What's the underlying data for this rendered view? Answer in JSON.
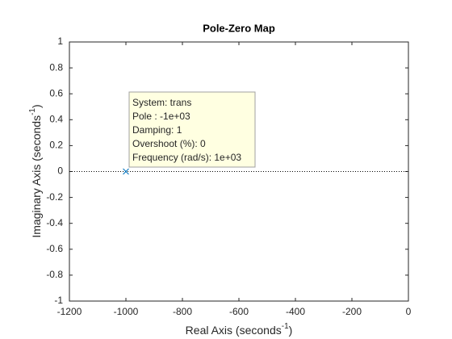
{
  "chart_data": {
    "type": "scatter",
    "title": "Pole-Zero Map",
    "xlabel": [
      "Real Axis (seconds",
      "-1",
      ")"
    ],
    "ylabel": [
      "Imaginary Axis (seconds",
      "-1",
      ")"
    ],
    "series": [
      {
        "x": [
          -1000
        ],
        "values": [
          0
        ],
        "color": "#0072bd"
      }
    ],
    "xlim": [
      -1200,
      0
    ],
    "xticks": [
      -1200,
      -1000,
      -800,
      -600,
      -400,
      -200,
      0
    ],
    "ylim": [
      -1,
      1
    ],
    "yticks": [
      -1,
      -0.8,
      -0.6,
      -0.4,
      -0.2,
      0,
      0.2,
      0.4,
      0.6,
      0.8,
      1
    ],
    "grid": false,
    "datatip": [
      "System: trans",
      "Pole : -1e+03",
      "Damping: 1",
      "Overshoot (%): 0",
      "Frequency (rad/s): 1e+03"
    ]
  }
}
